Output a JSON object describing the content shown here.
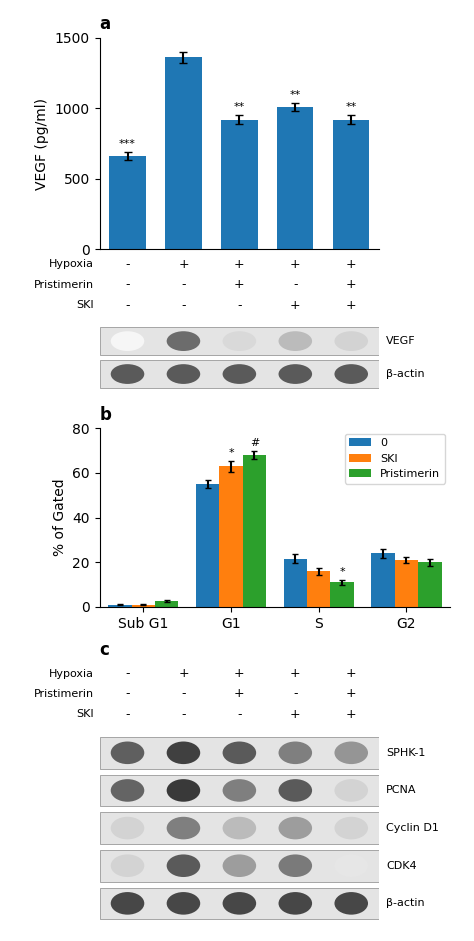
{
  "chart_data": [
    {
      "type": "bar",
      "title": "a",
      "ylabel": "VEGF (pg/ml)",
      "categories": [
        null,
        null,
        null,
        null,
        null
      ],
      "values": [
        660,
        1360,
        920,
        1010,
        920
      ],
      "errors": [
        30,
        40,
        30,
        30,
        30
      ],
      "significance": [
        "***",
        null,
        "**",
        "**",
        "**"
      ],
      "ylim": [
        0,
        1500
      ],
      "yticks": [
        0,
        500,
        1000,
        1500
      ],
      "tick_labels": "y",
      "treatments": [
        {
          "name": "Hypoxia",
          "values": [
            "-",
            "+",
            "+",
            "+",
            "+"
          ]
        },
        {
          "name": "Pristimerin",
          "values": [
            "-",
            "-",
            "+",
            "-",
            "+"
          ]
        },
        {
          "name": "SKI",
          "values": [
            "-",
            "-",
            "-",
            "+",
            "+"
          ]
        }
      ]
    },
    {
      "type": "blot",
      "color_range": [
        0,
        1
      ],
      "rows": [
        {
          "name": "VEGF",
          "values": [
            0.08,
            0.65,
            0.25,
            0.38,
            0.28
          ]
        },
        {
          "name": "β-actin",
          "values": [
            0.72,
            0.72,
            0.72,
            0.72,
            0.72
          ]
        }
      ]
    },
    {
      "type": "bar",
      "title": "b",
      "ylabel": "% of Gated",
      "categories": [
        "Sub G1",
        "G1",
        "S",
        "G2"
      ],
      "series": [
        {
          "name": "0",
          "values": [
            1.0,
            55.0,
            21.5,
            24.0
          ],
          "errors": [
            0.3,
            2.0,
            2.0,
            2.0
          ],
          "significance": [
            null,
            null,
            null,
            null
          ]
        },
        {
          "name": "SKI",
          "values": [
            1.0,
            63.0,
            16.0,
            21.0
          ],
          "errors": [
            0.3,
            2.5,
            1.5,
            1.5
          ],
          "significance": [
            null,
            "*",
            null,
            null
          ]
        },
        {
          "name": "Pristimerin",
          "values": [
            2.5,
            68.0,
            11.0,
            20.0
          ],
          "errors": [
            0.5,
            2.0,
            1.0,
            1.5
          ],
          "significance": [
            null,
            "#",
            "*",
            null
          ]
        }
      ],
      "ylim": [
        0,
        80
      ],
      "yticks": [
        0,
        20,
        40,
        60,
        80
      ],
      "legend": "upper right"
    },
    {
      "type": "blot",
      "title": "c",
      "color_range": [
        0,
        1
      ],
      "treatments": [
        {
          "name": "Hypoxia",
          "values": [
            "-",
            "+",
            "+",
            "+",
            "+"
          ]
        },
        {
          "name": "Pristimerin",
          "values": [
            "-",
            "-",
            "+",
            "-",
            "+"
          ]
        },
        {
          "name": "SKI",
          "values": [
            "-",
            "-",
            "-",
            "+",
            "+"
          ]
        }
      ],
      "rows": [
        {
          "name": "SPHK-1",
          "values": [
            0.7,
            0.8,
            0.72,
            0.58,
            0.5
          ]
        },
        {
          "name": "PCNA",
          "values": [
            0.68,
            0.82,
            0.58,
            0.72,
            0.28
          ]
        },
        {
          "name": "Cyclin D1",
          "values": [
            0.28,
            0.58,
            0.38,
            0.48,
            0.28
          ]
        },
        {
          "name": "CDK4",
          "values": [
            0.28,
            0.72,
            0.48,
            0.6,
            0.18
          ]
        },
        {
          "name": "β-actin",
          "values": [
            0.78,
            0.78,
            0.78,
            0.78,
            0.78
          ]
        }
      ]
    }
  ]
}
